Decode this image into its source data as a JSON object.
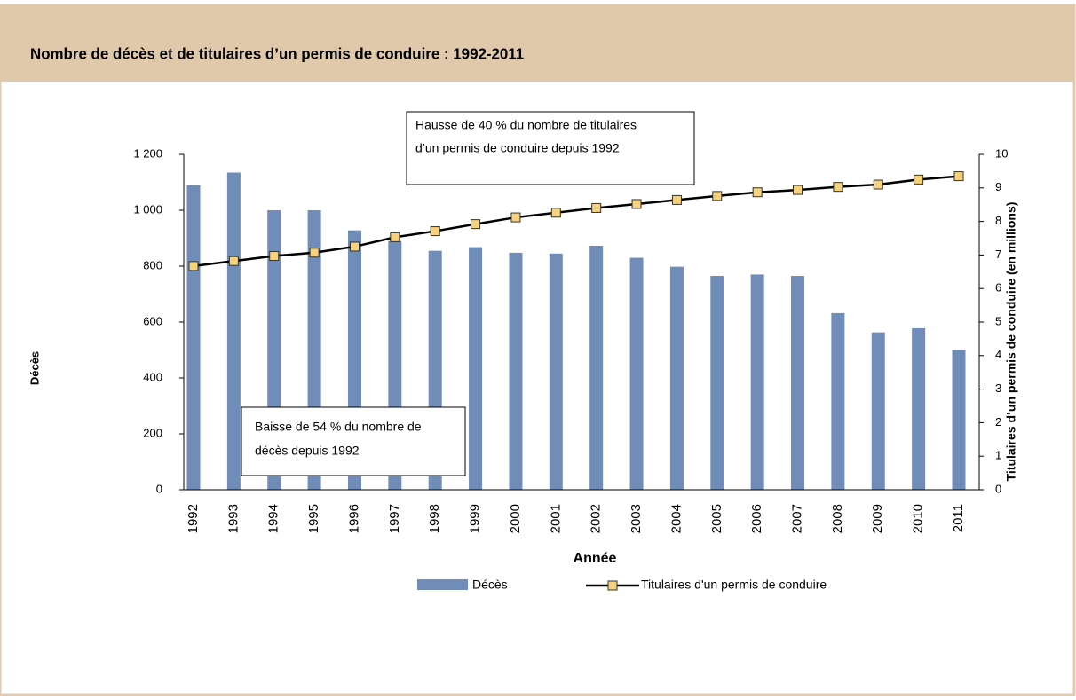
{
  "chart_data": {
    "type": "bar",
    "title": "Nombre de décès et de titulaires d’un permis de conduire : 1992-2011",
    "x_label": "Année",
    "y_label": "Décès",
    "y2_label": "Titulaires d’un permis de conduire (en millions)",
    "annotations": [
      "Hausse de 40 % du nombre de titulaires",
      "d’un permis de conduire depuis 1992",
      "Baisse de 54 % du nombre de",
      "décès depuis 1992"
    ],
    "categories": [
      "1992",
      "1993",
      "1994",
      "1995",
      "1996",
      "1997",
      "1998",
      "1999",
      "2000",
      "2001",
      "2002",
      "2003",
      "2004",
      "2005",
      "2006",
      "2007",
      "2008",
      "2009",
      "2010",
      "2011"
    ],
    "series": [
      {
        "name": "Décès",
        "color": "#6f8db8",
        "values": [
          1090,
          1135,
          1000,
          1000,
          928,
          890,
          855,
          868,
          848,
          845,
          873,
          830,
          798,
          765,
          770,
          765,
          632,
          563,
          578,
          500
        ]
      },
      {
        "name": "Titulaires d'un permis de conduire",
        "color": "#000000",
        "marker_color": "#f6d27c",
        "axis": "y2",
        "values": [
          6.67,
          6.82,
          6.97,
          7.07,
          7.25,
          7.53,
          7.71,
          7.92,
          8.12,
          8.26,
          8.4,
          8.52,
          8.64,
          8.76,
          8.87,
          8.94,
          9.03,
          9.1,
          9.25,
          9.35
        ]
      }
    ],
    "ylim": [
      0,
      1200
    ],
    "yticks": [
      0,
      200,
      400,
      600,
      800,
      {
        "value": 1000,
        "label": "1 000"
      },
      {
        "value": 1200,
        "label": "1 200"
      }
    ],
    "y2lim": [
      0,
      10
    ],
    "y2ticks": [
      0,
      1,
      2,
      3,
      4,
      5,
      6,
      7,
      8,
      9,
      10
    ]
  }
}
